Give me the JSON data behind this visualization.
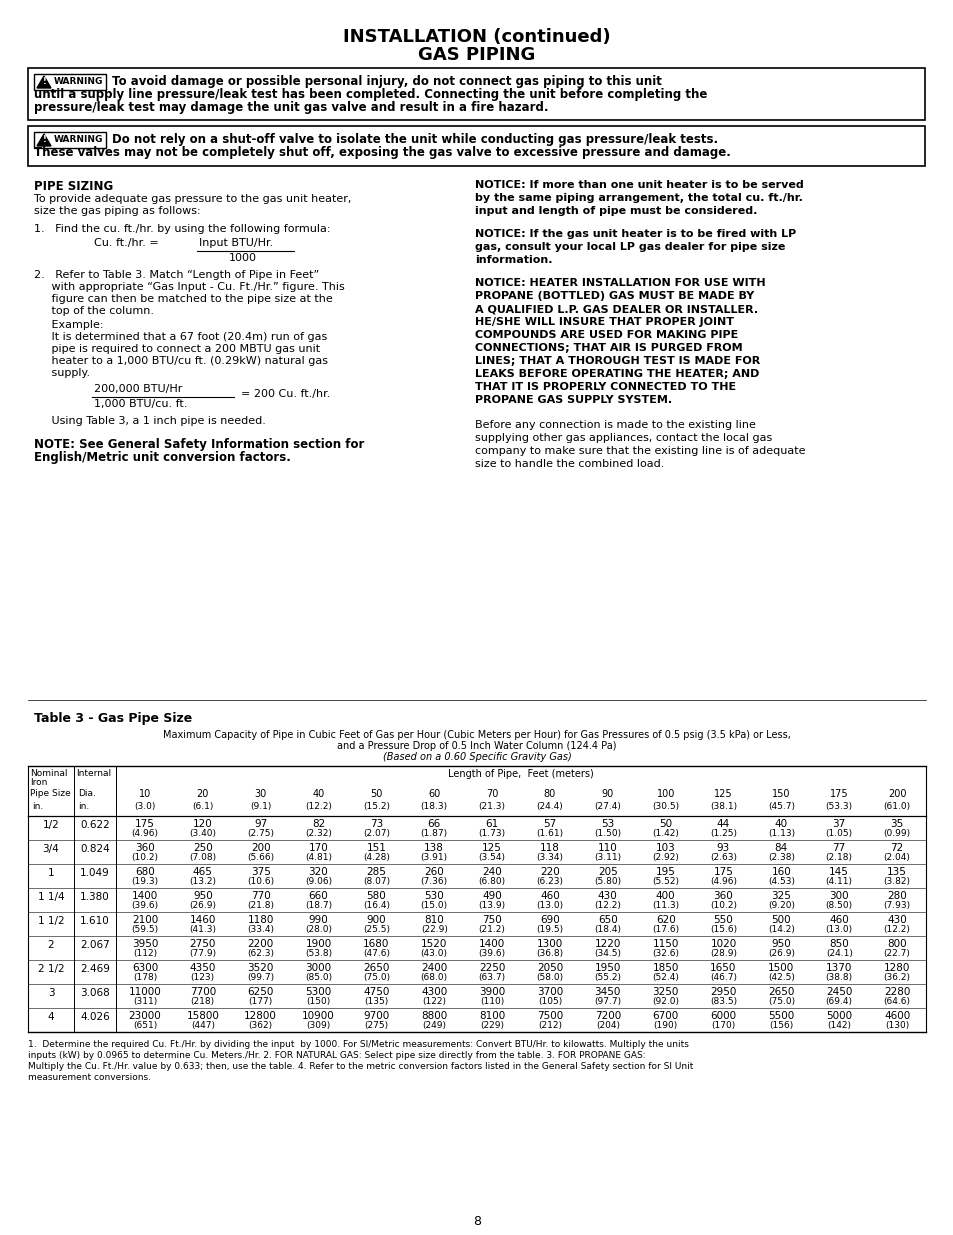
{
  "title_line1": "INSTALLATION (continued)",
  "title_line2": "GAS PIPING",
  "warning1_lines": [
    "▲WARNING  To avoid damage or possible personal injury, do not connect gas piping to this unit",
    "until a supply line pressure/leak test has been completed. Connecting the unit before completing the",
    "pressure/leak test may damage the unit gas valve and result in a fire hazard."
  ],
  "warning2_lines": [
    "▲WARNING  Do not rely on a shut-off valve to isolate the unit while conducting gas pressure/leak tests.",
    "These valves may not be completely shut off, exposing the gas valve to excessive pressure and damage."
  ],
  "table_title": "Table 3 - Gas Pipe Size",
  "table_subtitle1": "Maximum Capacity of Pipe in Cubic Feet of Gas per Hour (Cubic Meters per Hour) for Gas Pressures of 0.5 psig (3.5 kPa) or Less,",
  "table_subtitle2": "and a Pressure Drop of 0.5 Inch Water Column (124.4 Pa)",
  "table_subtitle3": "(Based on a 0.60 Specific Gravity Gas)",
  "col_headers_ft": [
    "10",
    "20",
    "30",
    "40",
    "50",
    "60",
    "70",
    "80",
    "90",
    "100",
    "125",
    "150",
    "175",
    "200"
  ],
  "col_headers_m": [
    "(3.0)",
    "(6.1)",
    "(9.1)",
    "(12.2)",
    "(15.2)",
    "(18.3)",
    "(21.3)",
    "(24.4)",
    "(27.4)",
    "(30.5)",
    "(38.1)",
    "(45.7)",
    "(53.3)",
    "(61.0)"
  ],
  "pipe_sizes": [
    "1/2",
    "3/4",
    "1",
    "1 1/4",
    "1 1/2",
    "2",
    "2 1/2",
    "3",
    "4"
  ],
  "internal_dia": [
    "0.622",
    "0.824",
    "1.049",
    "1.380",
    "1.610",
    "2.067",
    "2.469",
    "3.068",
    "4.026"
  ],
  "table_data": [
    [
      175,
      120,
      97,
      82,
      73,
      66,
      61,
      57,
      53,
      50,
      44,
      40,
      37,
      35
    ],
    [
      360,
      250,
      200,
      170,
      151,
      138,
      125,
      118,
      110,
      103,
      93,
      84,
      77,
      72
    ],
    [
      680,
      465,
      375,
      320,
      285,
      260,
      240,
      220,
      205,
      195,
      175,
      160,
      145,
      135
    ],
    [
      1400,
      950,
      770,
      660,
      580,
      530,
      490,
      460,
      430,
      400,
      360,
      325,
      300,
      280
    ],
    [
      2100,
      1460,
      1180,
      990,
      900,
      810,
      750,
      690,
      650,
      620,
      550,
      500,
      460,
      430
    ],
    [
      3950,
      2750,
      2200,
      1900,
      1680,
      1520,
      1400,
      1300,
      1220,
      1150,
      1020,
      950,
      850,
      800
    ],
    [
      6300,
      4350,
      3520,
      3000,
      2650,
      2400,
      2250,
      2050,
      1950,
      1850,
      1650,
      1500,
      1370,
      1280
    ],
    [
      11000,
      7700,
      6250,
      5300,
      4750,
      4300,
      3900,
      3700,
      3450,
      3250,
      2950,
      2650,
      2450,
      2280
    ],
    [
      23000,
      15800,
      12800,
      10900,
      9700,
      8800,
      8100,
      7500,
      7200,
      6700,
      6000,
      5500,
      5000,
      4600
    ]
  ],
  "table_data_metric": [
    [
      "(4.96)",
      "(3.40)",
      "(2.75)",
      "(2.32)",
      "(2.07)",
      "(1.87)",
      "(1.73)",
      "(1.61)",
      "(1.50)",
      "(1.42)",
      "(1.25)",
      "(1.13)",
      "(1.05)",
      "(0.99)"
    ],
    [
      "(10.2)",
      "(7.08)",
      "(5.66)",
      "(4.81)",
      "(4.28)",
      "(3.91)",
      "(3.54)",
      "(3.34)",
      "(3.11)",
      "(2.92)",
      "(2.63)",
      "(2.38)",
      "(2.18)",
      "(2.04)"
    ],
    [
      "(19.3)",
      "(13.2)",
      "(10.6)",
      "(9.06)",
      "(8.07)",
      "(7.36)",
      "(6.80)",
      "(6.23)",
      "(5.80)",
      "(5.52)",
      "(4.96)",
      "(4.53)",
      "(4.11)",
      "(3.82)"
    ],
    [
      "(39.6)",
      "(26.9)",
      "(21.8)",
      "(18.7)",
      "(16.4)",
      "(15.0)",
      "(13.9)",
      "(13.0)",
      "(12.2)",
      "(11.3)",
      "(10.2)",
      "(9.20)",
      "(8.50)",
      "(7.93)"
    ],
    [
      "(59.5)",
      "(41.3)",
      "(33.4)",
      "(28.0)",
      "(25.5)",
      "(22.9)",
      "(21.2)",
      "(19.5)",
      "(18.4)",
      "(17.6)",
      "(15.6)",
      "(14.2)",
      "(13.0)",
      "(12.2)"
    ],
    [
      "(112)",
      "(77.9)",
      "(62.3)",
      "(53.8)",
      "(47.6)",
      "(43.0)",
      "(39.6)",
      "(36.8)",
      "(34.5)",
      "(32.6)",
      "(28.9)",
      "(26.9)",
      "(24.1)",
      "(22.7)"
    ],
    [
      "(178)",
      "(123)",
      "(99.7)",
      "(85.0)",
      "(75.0)",
      "(68.0)",
      "(63.7)",
      "(58.0)",
      "(55.2)",
      "(52.4)",
      "(46.7)",
      "(42.5)",
      "(38.8)",
      "(36.2)"
    ],
    [
      "(311)",
      "(218)",
      "(177)",
      "(150)",
      "(135)",
      "(122)",
      "(110)",
      "(105)",
      "(97.7)",
      "(92.0)",
      "(83.5)",
      "(75.0)",
      "(69.4)",
      "(64.6)"
    ],
    [
      "(651)",
      "(447)",
      "(362)",
      "(309)",
      "(275)",
      "(249)",
      "(229)",
      "(212)",
      "(204)",
      "(190)",
      "(170)",
      "(156)",
      "(142)",
      "(130)"
    ]
  ],
  "footnote_lines": [
    "1.  Determine the required Cu. Ft./Hr. by dividing the input  by 1000. For SI/Metric measurements: Convert BTU/Hr. to kilowatts. Multiply the units",
    "inputs (kW) by 0.0965 to determine Cu. Meters./Hr. 2. FOR NATURAL GAS: Select pipe size directly from the table. 3. FOR PROPANE GAS:",
    "Multiply the Cu. Ft./Hr. value by 0.633; then, use the table. 4. Refer to the metric conversion factors listed in the General Safety section for SI Unit",
    "measurement conversions."
  ],
  "page_number": "8"
}
